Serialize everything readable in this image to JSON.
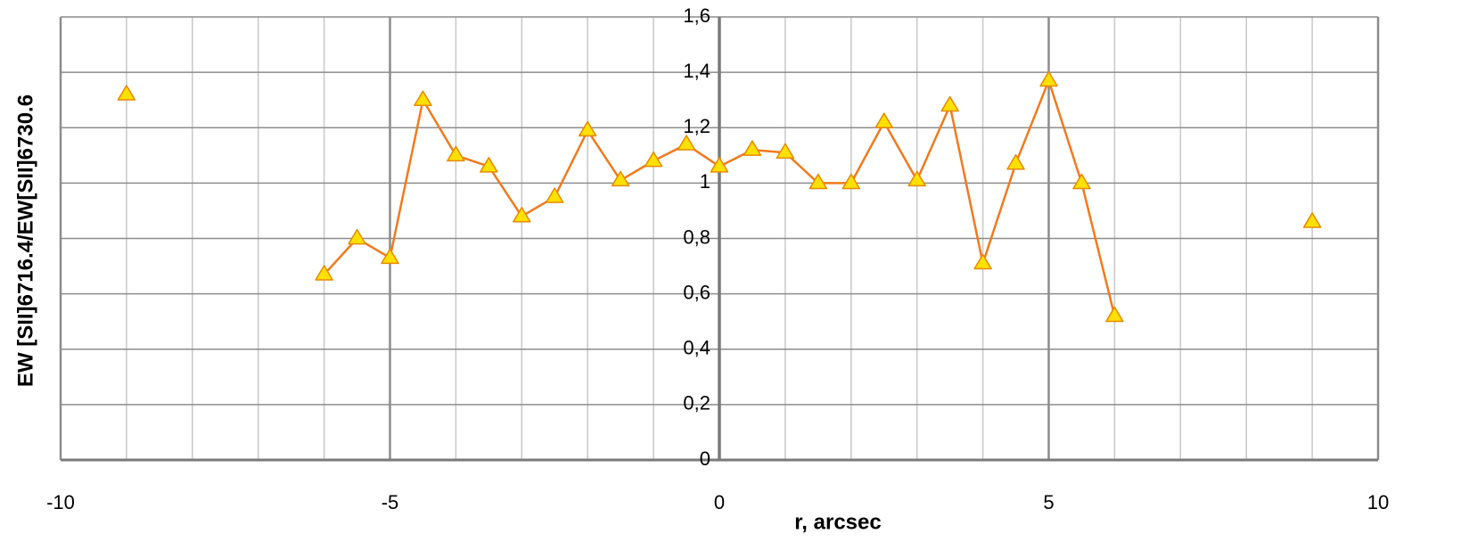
{
  "chart_data": {
    "type": "scatter",
    "title": "",
    "xlabel": "r, arcsec",
    "ylabel": "EW [SII]6716.4/EW[SII]6730.6",
    "xlim": [
      -10,
      10
    ],
    "ylim": [
      0,
      1.6
    ],
    "x_ticks": [
      -10,
      -5,
      0,
      5,
      10
    ],
    "x_tick_labels": [
      "-10",
      "-5",
      "0",
      "5",
      "10"
    ],
    "y_ticks": [
      0,
      0.2,
      0.4,
      0.6,
      0.8,
      1.0,
      1.2,
      1.4,
      1.6
    ],
    "y_tick_labels": [
      "0",
      "0,2",
      "0,4",
      "0,6",
      "0,8",
      "1",
      "1,2",
      "1,4",
      "1,6"
    ],
    "grid": true,
    "legend": "none",
    "colors": {
      "line": "#f07a1e",
      "marker_fill": "#ffe000",
      "marker_stroke": "#e58a00",
      "major_grid": "#8c8c8c",
      "minor_grid": "#c8c8c8"
    },
    "series": [
      {
        "connected": true,
        "points": [
          [
            -6,
            0.67
          ],
          [
            -5.5,
            0.8
          ],
          [
            -5,
            0.73
          ],
          [
            -4.5,
            1.3
          ],
          [
            -4,
            1.1
          ],
          [
            -3.5,
            1.06
          ],
          [
            -3,
            0.88
          ],
          [
            -2.5,
            0.95
          ],
          [
            -2,
            1.19
          ],
          [
            -1.5,
            1.01
          ],
          [
            -1,
            1.08
          ],
          [
            -0.5,
            1.14
          ],
          [
            0,
            1.06
          ],
          [
            0.5,
            1.12
          ],
          [
            1,
            1.11
          ],
          [
            1.5,
            1.0
          ],
          [
            2,
            1.0
          ],
          [
            2.5,
            1.22
          ],
          [
            3,
            1.01
          ],
          [
            3.5,
            1.28
          ],
          [
            4,
            0.71
          ],
          [
            4.5,
            1.07
          ],
          [
            5,
            1.37
          ],
          [
            5.5,
            1.0
          ],
          [
            6,
            0.52
          ]
        ]
      },
      {
        "connected": false,
        "points": [
          [
            -9,
            1.32
          ],
          [
            9,
            0.86
          ]
        ]
      }
    ]
  }
}
